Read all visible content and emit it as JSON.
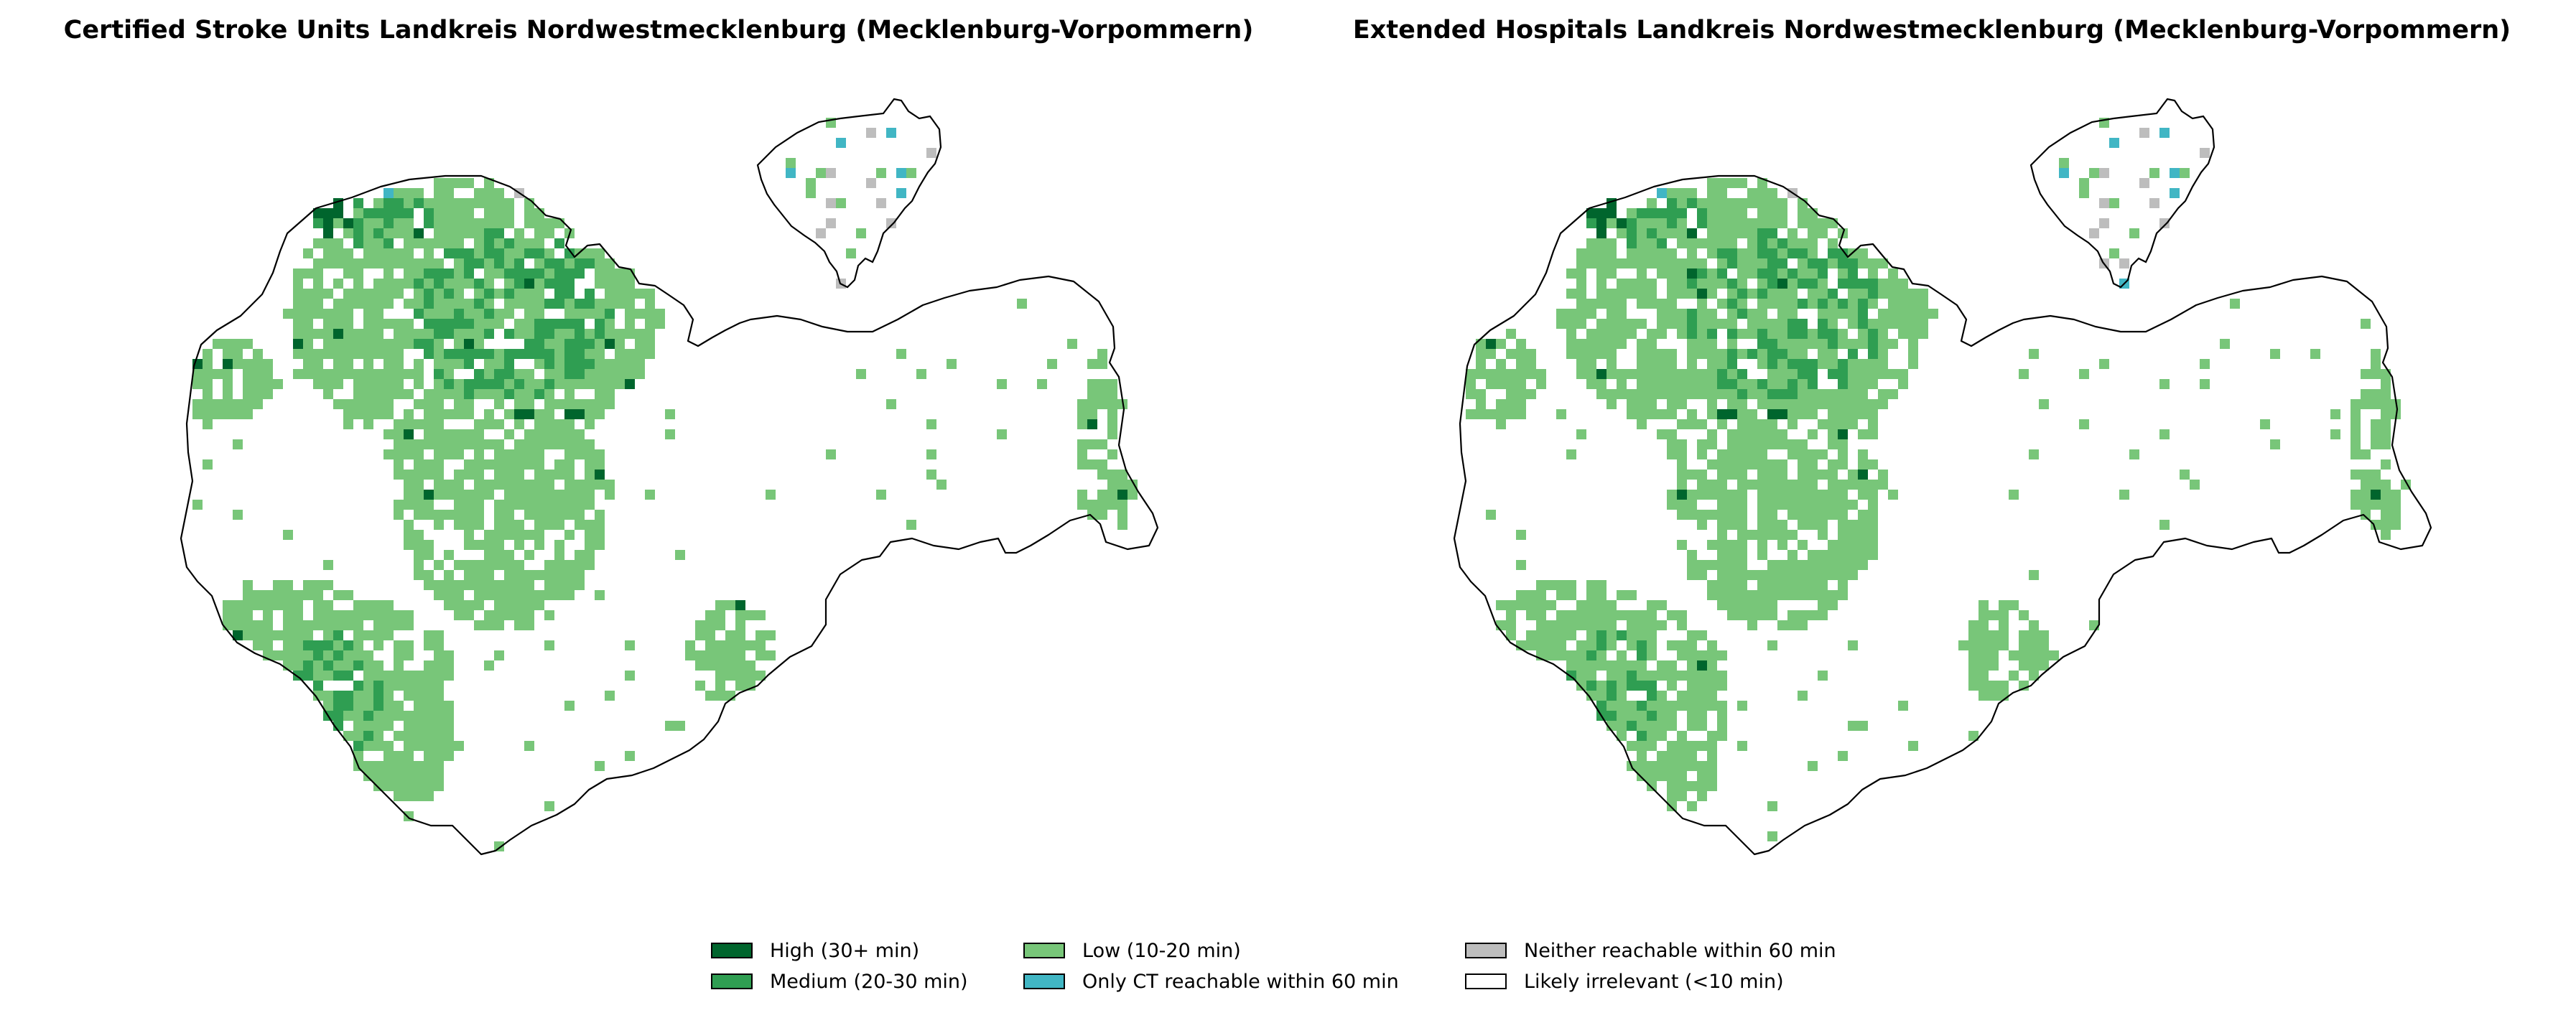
{
  "panels": [
    {
      "title": "Certified Stroke Units Landkreis Nordwestmecklenburg (Mecklenburg-Vorpommern)"
    },
    {
      "title": "Extended Hospitals Landkreis Nordwestmecklenburg (Mecklenburg-Vorpommern)"
    }
  ],
  "legend": {
    "items": [
      {
        "label": "High (30+ min)",
        "color": "#00652d"
      },
      {
        "label": "Medium (20-30 min)",
        "color": "#2f9e52"
      },
      {
        "label": "Low (10-20 min)",
        "color": "#78c679"
      },
      {
        "label": "Only CT reachable within 60 min",
        "color": "#41b6c4"
      },
      {
        "label": "Neither reachable within 60 min",
        "color": "#bdbdbd"
      },
      {
        "label": "Likely irrelevant (<10 min)",
        "color": "#ffffff"
      }
    ]
  }
}
